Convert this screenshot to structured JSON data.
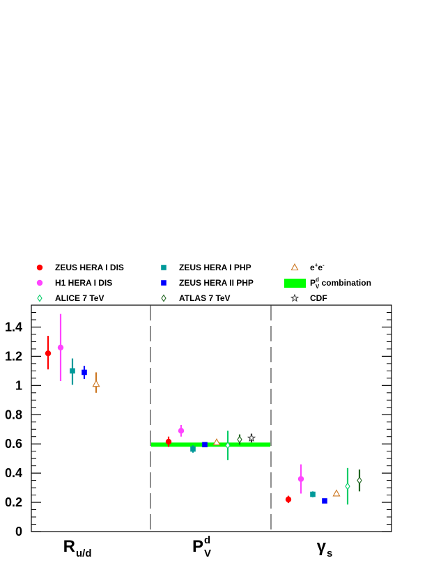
{
  "chart_data": {
    "type": "scatter",
    "ylim": [
      0,
      1.55
    ],
    "y_ticks": [
      "0",
      "0.2",
      "0.4",
      "0.6",
      "0.8",
      "1",
      "1.2",
      "1.4"
    ],
    "grid": false,
    "legend_position": "top",
    "categories": [
      {
        "main": "R",
        "sub": "u/d",
        "sup": ""
      },
      {
        "main": "P",
        "sub": "V",
        "sup": "d"
      },
      {
        "main": "γ",
        "sub": "s",
        "sup": ""
      }
    ],
    "band": {
      "name": "combination",
      "label_main": "P",
      "label_sub": "V",
      "label_sup": "d",
      "label_rest": " combination",
      "category": 1,
      "value": 0.595,
      "color": "#00ff00"
    },
    "series": [
      {
        "name": "ZEUS HERA I DIS",
        "color": "#ff0000",
        "marker": "circle",
        "points": [
          {
            "category": 0,
            "y": 1.22,
            "err_low": 0.11,
            "err_high": 0.12
          },
          {
            "category": 1,
            "y": 0.615,
            "err_low": 0.035,
            "err_high": 0.035
          },
          {
            "category": 2,
            "y": 0.22,
            "err_low": 0.025,
            "err_high": 0.025
          }
        ]
      },
      {
        "name": "H1 HERA I DIS",
        "color": "#ff44ff",
        "marker": "circle",
        "points": [
          {
            "category": 0,
            "y": 1.26,
            "err_low": 0.23,
            "err_high": 0.23
          },
          {
            "category": 1,
            "y": 0.69,
            "err_low": 0.04,
            "err_high": 0.04
          },
          {
            "category": 2,
            "y": 0.36,
            "err_low": 0.1,
            "err_high": 0.1
          }
        ]
      },
      {
        "name": "ALICE 7 TeV",
        "color": "#00cc66",
        "marker": "diamond-open",
        "points": [
          {
            "category": 1,
            "y": 0.59,
            "err_low": 0.1,
            "err_high": 0.1
          },
          {
            "category": 2,
            "y": 0.31,
            "err_low": 0.125,
            "err_high": 0.125
          }
        ]
      },
      {
        "name": "ZEUS HERA I PHP",
        "color": "#009999",
        "marker": "square",
        "points": [
          {
            "category": 0,
            "y": 1.1,
            "err_low": 0.095,
            "err_high": 0.085
          },
          {
            "category": 1,
            "y": 0.565,
            "err_low": 0.025,
            "err_high": 0.025
          },
          {
            "category": 2,
            "y": 0.255,
            "err_low": 0.02,
            "err_high": 0.02
          }
        ]
      },
      {
        "name": "ZEUS HERA II PHP",
        "color": "#0000ff",
        "marker": "square",
        "points": [
          {
            "category": 0,
            "y": 1.09,
            "err_low": 0.045,
            "err_high": 0.045
          },
          {
            "category": 1,
            "y": 0.595,
            "err_low": 0.015,
            "err_high": 0.015
          },
          {
            "category": 2,
            "y": 0.21,
            "err_low": 0.0,
            "err_high": 0.0
          }
        ]
      },
      {
        "name": "ATLAS 7 TeV",
        "color": "#226622",
        "marker": "diamond-open",
        "points": [
          {
            "category": 1,
            "y": 0.63,
            "err_low": 0.035,
            "err_high": 0.035
          },
          {
            "category": 2,
            "y": 0.35,
            "err_low": 0.075,
            "err_high": 0.075
          }
        ]
      },
      {
        "name": "e+e-",
        "label_main": "e",
        "label_sup1": "+",
        "label_mid": "e",
        "label_sup2": "-",
        "color": "#cc7722",
        "marker": "triangle-open",
        "points": [
          {
            "category": 0,
            "y": 1.01,
            "err_low": 0.06,
            "err_high": 0.08
          },
          {
            "category": 1,
            "y": 0.61,
            "err_low": 0.0,
            "err_high": 0.0
          },
          {
            "category": 2,
            "y": 0.26,
            "err_low": 0.0,
            "err_high": 0.0
          }
        ]
      },
      {
        "name": "CDF",
        "color": "#333333",
        "marker": "star-open",
        "points": [
          {
            "category": 1,
            "y": 0.64,
            "err_low": 0.03,
            "err_high": 0.03
          }
        ]
      }
    ]
  }
}
